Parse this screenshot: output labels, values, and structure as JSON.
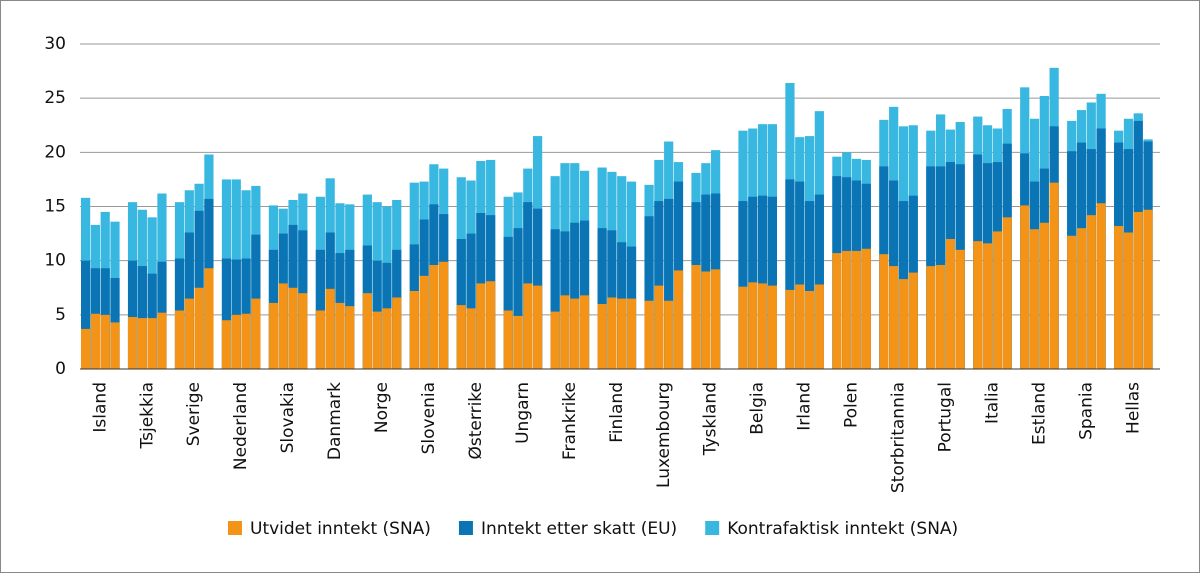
{
  "chart_data": {
    "type": "bar",
    "overlay": true,
    "categories": [
      "Island",
      "Tsjekkia",
      "Sverige",
      "Nederland",
      "Slovakia",
      "Danmark",
      "Norge",
      "Slovenia",
      "Østerrike",
      "Ungarn",
      "Frankrike",
      "Finland",
      "Luxembourg",
      "Tyskland",
      "Belgia",
      "Irland",
      "Polen",
      "Storbritannia",
      "Portugal",
      "Italia",
      "Estland",
      "Spania",
      "Hellas"
    ],
    "ylim": [
      0,
      30
    ],
    "yticks": [
      0,
      5,
      10,
      15,
      20,
      25,
      30
    ],
    "grid": true,
    "series": [
      {
        "name": "Kontrafaktisk inntekt (SNA)",
        "color": "#38b7e0",
        "values": [
          [
            15.8,
            13.3,
            14.5,
            13.6
          ],
          [
            15.4,
            14.7,
            14.0,
            16.2
          ],
          [
            15.4,
            16.5,
            17.1,
            19.8
          ],
          [
            17.5,
            17.5,
            16.5,
            16.9
          ],
          [
            15.1,
            14.8,
            15.6,
            16.2
          ],
          [
            15.9,
            17.6,
            15.3,
            15.2
          ],
          [
            16.1,
            15.4,
            15.0,
            15.6
          ],
          [
            17.2,
            17.3,
            18.9,
            18.5
          ],
          [
            17.7,
            17.4,
            19.2,
            19.3
          ],
          [
            15.9,
            16.3,
            18.5,
            21.5
          ],
          [
            17.8,
            19.0,
            19.0,
            18.3
          ],
          [
            18.6,
            18.2,
            17.8,
            17.3
          ],
          [
            17.0,
            19.3,
            21.0,
            19.1
          ],
          [
            18.1,
            19.0,
            20.2,
            null
          ],
          [
            22.0,
            22.2,
            22.6,
            22.6
          ],
          [
            26.4,
            21.4,
            21.5,
            23.8
          ],
          [
            19.6,
            20.0,
            19.4,
            19.3
          ],
          [
            23.0,
            24.2,
            22.4,
            22.5
          ],
          [
            22.0,
            23.5,
            22.1,
            22.8
          ],
          [
            23.3,
            22.5,
            22.2,
            24.0
          ],
          [
            26.0,
            23.1,
            25.2,
            27.8
          ],
          [
            22.9,
            23.9,
            24.6,
            25.4
          ],
          [
            22.0,
            23.1,
            23.6,
            21.2
          ]
        ]
      },
      {
        "name": "Inntekt etter skatt (EU)",
        "color": "#0a74b4",
        "values": [
          [
            10.0,
            9.3,
            9.3,
            8.4
          ],
          [
            10.0,
            9.5,
            8.8,
            9.9
          ],
          [
            10.2,
            12.6,
            14.6,
            15.7
          ],
          [
            10.2,
            10.1,
            10.2,
            12.4
          ],
          [
            11.0,
            12.5,
            13.3,
            12.8
          ],
          [
            11.0,
            12.6,
            10.7,
            11.0
          ],
          [
            11.4,
            10.0,
            9.8,
            11.0
          ],
          [
            11.5,
            13.8,
            15.2,
            14.3
          ],
          [
            12.0,
            12.5,
            14.4,
            14.2
          ],
          [
            12.2,
            13.0,
            15.4,
            14.8
          ],
          [
            12.9,
            12.7,
            13.5,
            13.7
          ],
          [
            13.0,
            12.8,
            11.7,
            11.3
          ],
          [
            14.1,
            15.5,
            15.7,
            17.3
          ],
          [
            15.4,
            16.1,
            16.2,
            null
          ],
          [
            15.5,
            15.9,
            16.0,
            15.9
          ],
          [
            17.5,
            17.3,
            15.5,
            16.1
          ],
          [
            17.8,
            17.7,
            17.4,
            17.1
          ],
          [
            18.7,
            17.4,
            15.5,
            16.0
          ],
          [
            18.7,
            18.7,
            19.1,
            18.9
          ],
          [
            19.8,
            19.0,
            19.1,
            20.8
          ],
          [
            19.9,
            17.3,
            18.5,
            22.4
          ],
          [
            20.1,
            20.9,
            20.3,
            22.2
          ],
          [
            20.9,
            20.3,
            22.9,
            21.0
          ]
        ]
      },
      {
        "name": "Utvidet inntekt (SNA)",
        "color": "#f39318",
        "values": [
          [
            3.7,
            5.1,
            5.0,
            4.3
          ],
          [
            4.8,
            4.7,
            4.7,
            5.2
          ],
          [
            5.4,
            6.5,
            7.5,
            9.3
          ],
          [
            4.5,
            5.0,
            5.1,
            6.5
          ],
          [
            6.1,
            7.9,
            7.5,
            7.0
          ],
          [
            5.4,
            7.4,
            6.1,
            5.8
          ],
          [
            7.0,
            5.3,
            5.6,
            6.6
          ],
          [
            7.2,
            8.6,
            9.6,
            9.9
          ],
          [
            5.9,
            5.6,
            7.9,
            8.1
          ],
          [
            5.4,
            4.9,
            7.9,
            7.7
          ],
          [
            5.3,
            6.8,
            6.5,
            6.8
          ],
          [
            6.0,
            6.6,
            6.5,
            6.5
          ],
          [
            6.3,
            7.7,
            6.3,
            9.1
          ],
          [
            9.6,
            9.0,
            9.2,
            null
          ],
          [
            7.6,
            8.0,
            7.9,
            7.7
          ],
          [
            7.3,
            7.8,
            7.2,
            7.8
          ],
          [
            10.7,
            10.9,
            10.9,
            11.1
          ],
          [
            10.6,
            9.5,
            8.3,
            8.9
          ],
          [
            9.5,
            9.6,
            12.0,
            11.0
          ],
          [
            11.8,
            11.6,
            12.7,
            14.0
          ],
          [
            15.1,
            12.9,
            13.5,
            17.2
          ],
          [
            12.3,
            13.0,
            14.2,
            15.3
          ],
          [
            13.2,
            12.6,
            14.5,
            14.7
          ]
        ]
      }
    ]
  }
}
